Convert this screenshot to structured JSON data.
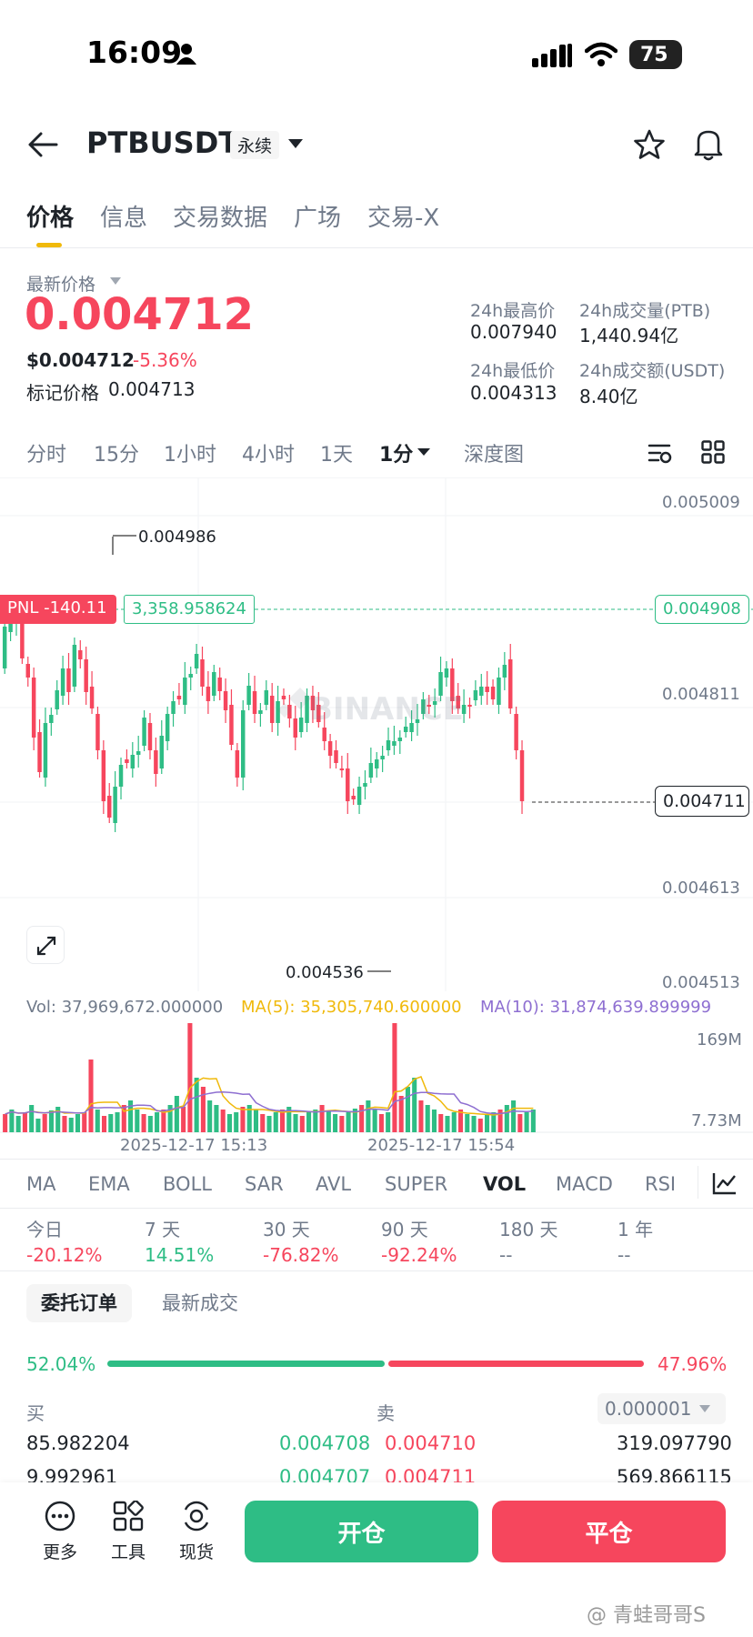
{
  "status_bar": {
    "time": "16:09",
    "battery": "75"
  },
  "header": {
    "symbol": "PTBUSDT",
    "contract_type": "永续"
  },
  "tabs": [
    "价格",
    "信息",
    "交易数据",
    "广场",
    "交易-X"
  ],
  "price_panel": {
    "last_price_label": "最新价格",
    "last_price": "0.004712",
    "usd_price": "$0.004712",
    "change_pct": "-5.36%",
    "mark_label": "标记价格",
    "mark_price": "0.004713",
    "high_label": "24h最高价",
    "high": "0.007940",
    "low_label": "24h最低价",
    "low": "0.004313",
    "vol_label": "24h成交量(PTB)",
    "vol": "1,440.94亿",
    "turnover_label": "24h成交额(USDT)",
    "turnover": "8.40亿"
  },
  "intervals": [
    "分时",
    "15分",
    "1小时",
    "4小时",
    "1天",
    "1分",
    "深度图"
  ],
  "chart": {
    "y_ticks": [
      "0.005009",
      "0.004811",
      "0.004613",
      "0.004513"
    ],
    "high_marker": "0.004986",
    "low_marker": "0.004536",
    "pnl_label": "PNL -140.11",
    "position_size": "3,358.958624",
    "entry_price": "0.004908",
    "current_price": "0.004711",
    "watermark": "BINANCE",
    "vol_text": "Vol: 37,969,672.000000",
    "ma5_text": "MA(5): 35,305,740.600000",
    "ma10_text": "MA(10): 31,874,639.899999",
    "vol_top": "169M",
    "vol_bottom": "7.73M",
    "time1": "2025-12-17 15:13",
    "time2": "2025-12-17 15:54",
    "up_color": "#2ebd85",
    "down_color": "#f6465d",
    "ma5_color": "#f0b90b",
    "ma10_color": "#8e6fd1"
  },
  "indicators": [
    "MA",
    "EMA",
    "BOLL",
    "SAR",
    "AVL",
    "SUPER",
    "VOL",
    "MACD",
    "RSI"
  ],
  "periods": [
    {
      "label": "今日",
      "value": "-20.12%"
    },
    {
      "label": "7 天",
      "value": "14.51%"
    },
    {
      "label": "30 天",
      "value": "-76.82%"
    },
    {
      "label": "90 天",
      "value": "-92.24%"
    },
    {
      "label": "180 天",
      "value": "--"
    },
    {
      "label": "1 年",
      "value": "--"
    }
  ],
  "orderbook": {
    "tab_orders": "委托订单",
    "tab_trades": "最新成交",
    "buy_pct": "52.04%",
    "sell_pct": "47.96%",
    "buy_label": "买",
    "sell_label": "卖",
    "precision": "0.000001",
    "rows": [
      {
        "bid_qty": "85.982204",
        "bid_price": "0.004708",
        "ask_price": "0.004710",
        "ask_qty": "319.097790"
      },
      {
        "bid_qty": "9.992961",
        "bid_price": "0.004707",
        "ask_price": "0.004711",
        "ask_qty": "569.866115"
      }
    ]
  },
  "bottom_bar": {
    "more": "更多",
    "tools": "工具",
    "spot": "现货",
    "open": "开仓",
    "close": "平仓"
  },
  "watermark_footer": "@ 青蛙哥哥S"
}
